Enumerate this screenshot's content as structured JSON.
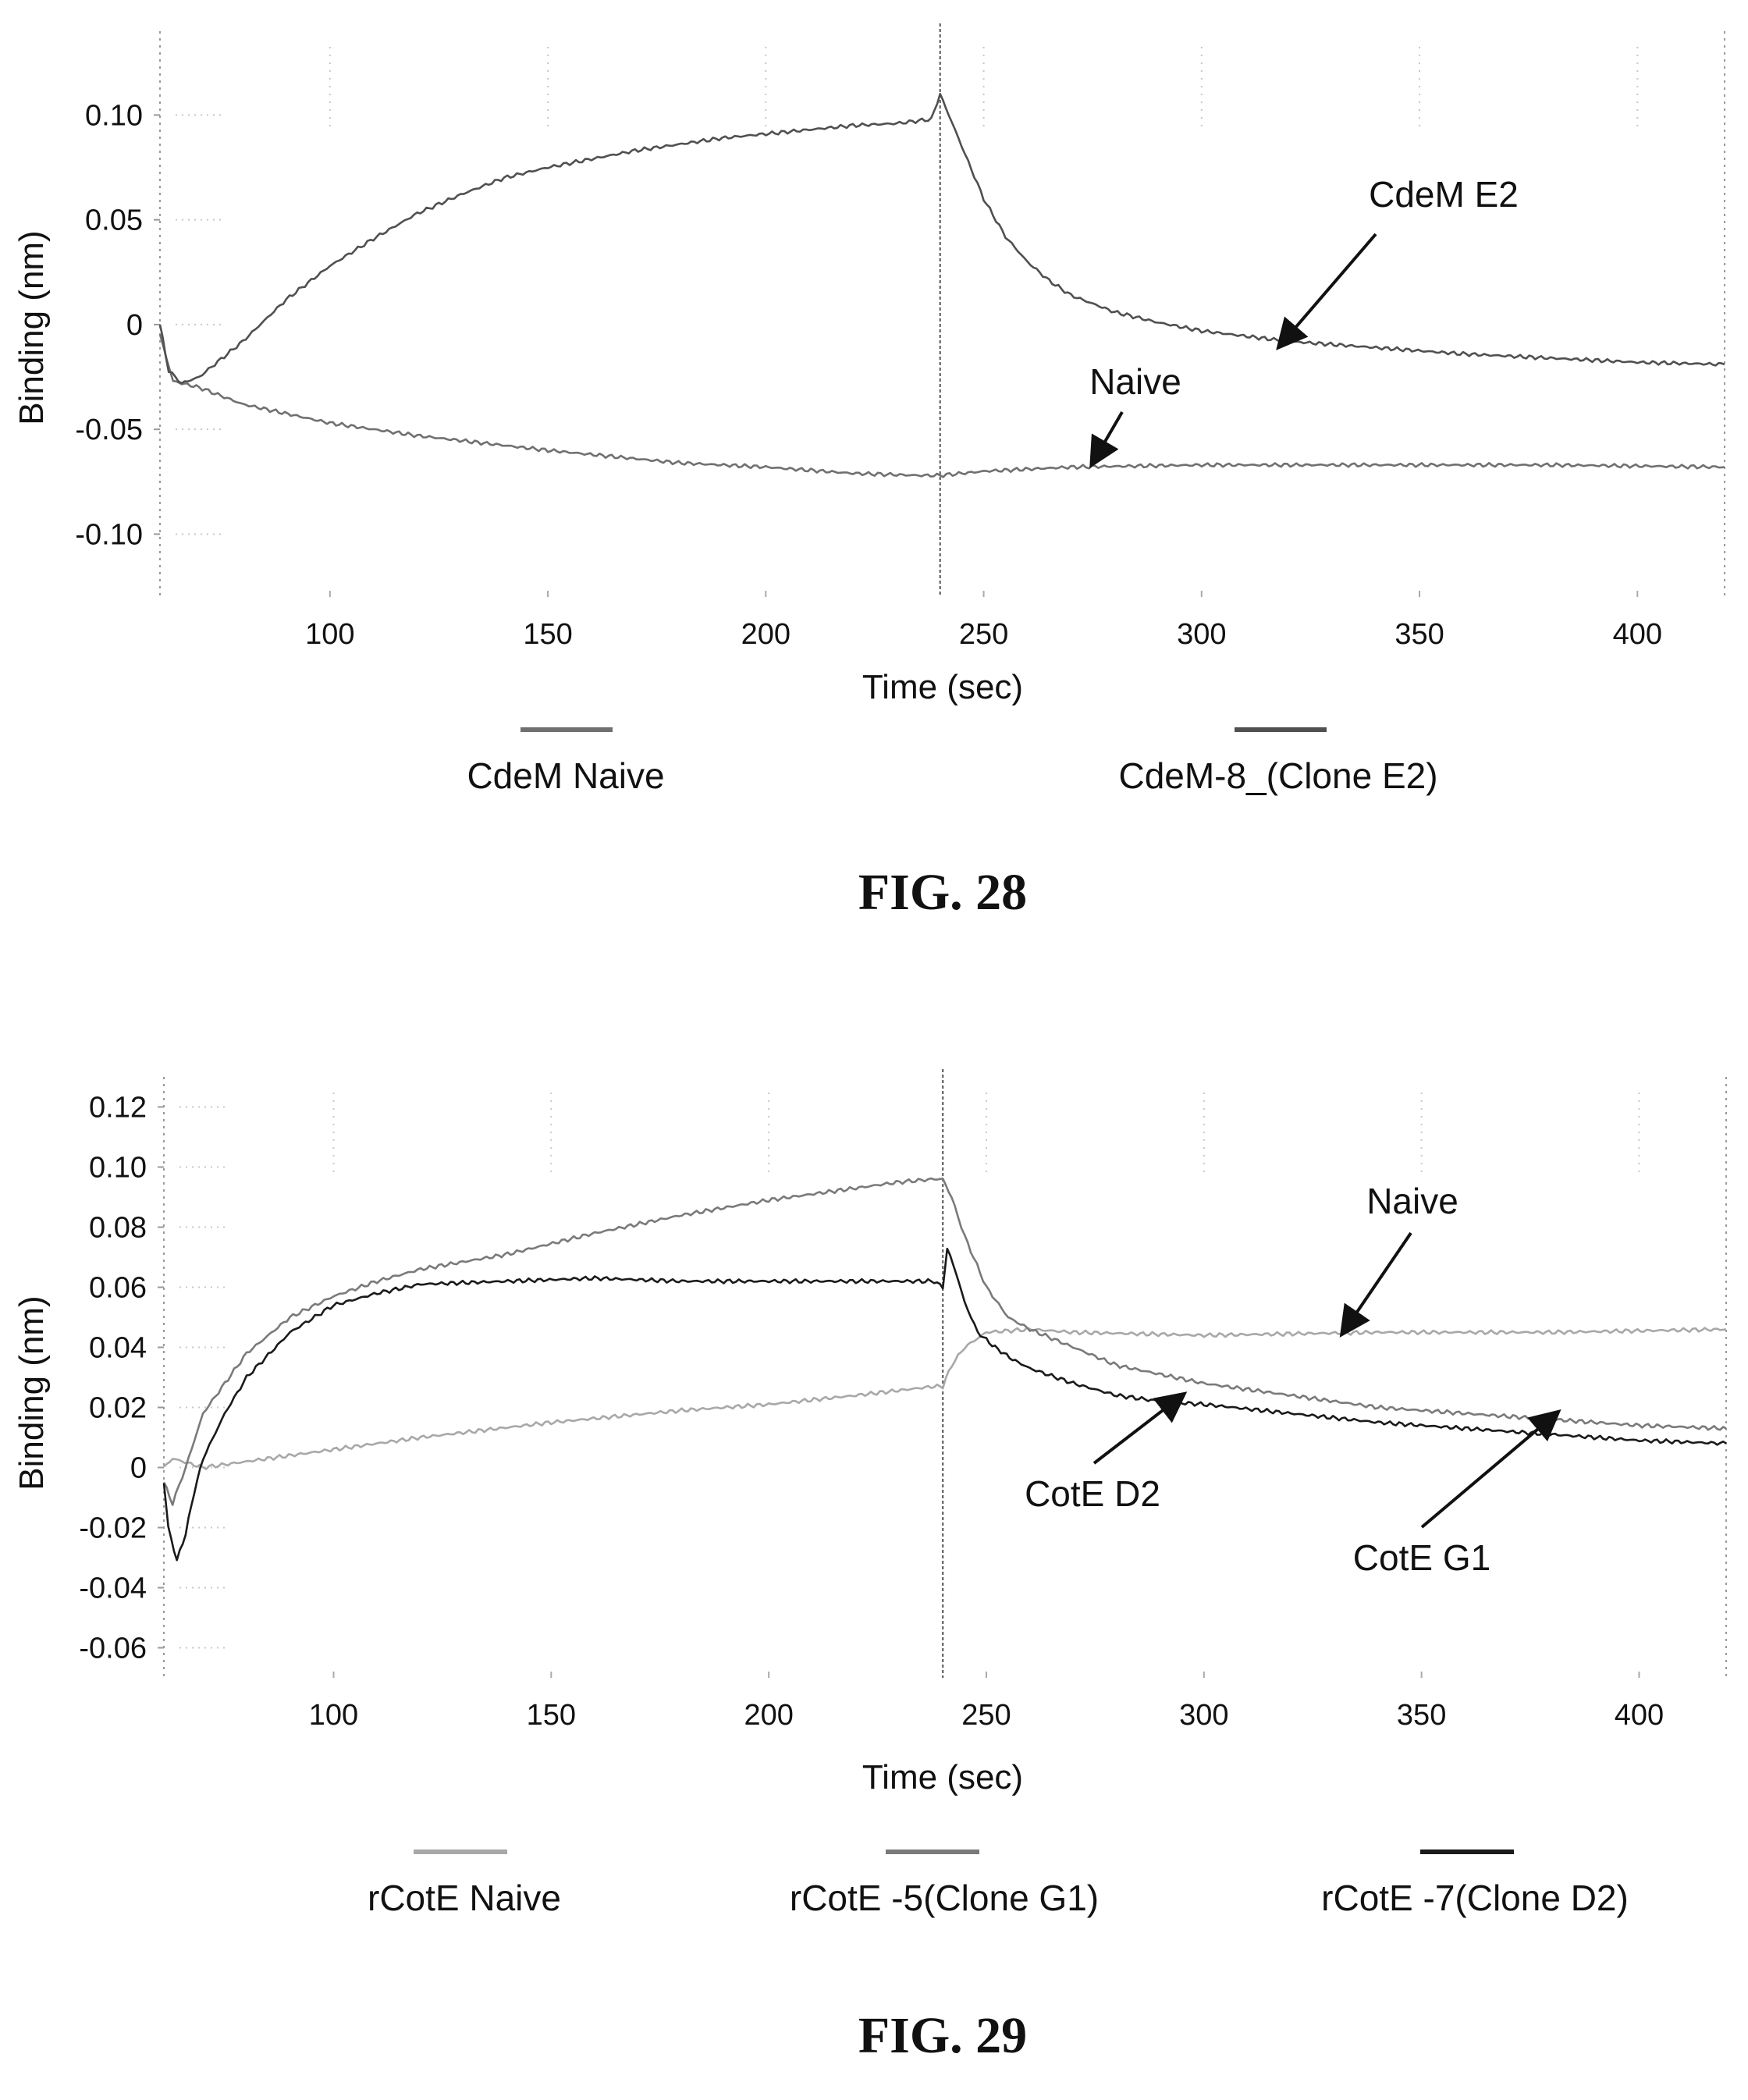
{
  "chart_data": [
    {
      "type": "line",
      "figure_label": "FIG. 28",
      "xlabel": "Time (sec)",
      "ylabel": "Binding (nm)",
      "xlim": [
        61,
        420
      ],
      "ylim": [
        -0.13,
        0.14
      ],
      "x_ticks": [
        100,
        150,
        200,
        250,
        300,
        350,
        400
      ],
      "y_ticks": [
        {
          "value": 0.1,
          "label": "0.10"
        },
        {
          "value": 0.05,
          "label": "0.05"
        },
        {
          "value": 0,
          "label": "0"
        },
        {
          "value": -0.05,
          "label": "-0.05"
        },
        {
          "value": -0.1,
          "label": "-0.10"
        }
      ],
      "marker_x": 240,
      "grid": false,
      "legend_position": "bottom",
      "series": [
        {
          "name": "CdeM Naive",
          "color": "#707070",
          "x": [
            61,
            64,
            70,
            80,
            100,
            120,
            150,
            180,
            200,
            220,
            235,
            240,
            250,
            270,
            300,
            340,
            380,
            420
          ],
          "y": [
            -0.005,
            -0.027,
            -0.03,
            -0.038,
            -0.047,
            -0.053,
            -0.06,
            -0.066,
            -0.068,
            -0.071,
            -0.072,
            -0.072,
            -0.07,
            -0.068,
            -0.067,
            -0.067,
            -0.067,
            -0.068
          ]
        },
        {
          "name": "CdeM-8_(Clone E2)",
          "color": "#505050",
          "x": [
            61,
            63,
            66,
            70,
            80,
            90,
            100,
            110,
            120,
            130,
            140,
            150,
            160,
            170,
            180,
            190,
            200,
            210,
            220,
            230,
            238,
            240,
            242,
            245,
            250,
            255,
            260,
            265,
            270,
            280,
            290,
            300,
            320,
            340,
            360,
            380,
            400,
            420
          ],
          "y": [
            0.0,
            -0.022,
            -0.028,
            -0.025,
            -0.008,
            0.012,
            0.028,
            0.041,
            0.053,
            0.062,
            0.07,
            0.075,
            0.079,
            0.083,
            0.086,
            0.089,
            0.091,
            0.093,
            0.095,
            0.096,
            0.098,
            0.11,
            0.1,
            0.085,
            0.06,
            0.042,
            0.03,
            0.021,
            0.014,
            0.006,
            0.001,
            -0.003,
            -0.008,
            -0.011,
            -0.014,
            -0.016,
            -0.018,
            -0.019
          ]
        }
      ],
      "annotations": [
        {
          "text": "CdeM E2",
          "target": [
            318,
            -0.01
          ]
        },
        {
          "text": "Naive",
          "target": [
            275,
            -0.066
          ]
        }
      ]
    },
    {
      "type": "line",
      "figure_label": "FIG. 29",
      "xlabel": "Time (sec)",
      "ylabel": "Binding (nm)",
      "xlim": [
        61,
        420
      ],
      "ylim": [
        -0.07,
        0.13
      ],
      "x_ticks": [
        100,
        150,
        200,
        250,
        300,
        350,
        400
      ],
      "y_ticks": [
        {
          "value": 0.12,
          "label": "0.12"
        },
        {
          "value": 0.1,
          "label": "0.10"
        },
        {
          "value": 0.08,
          "label": "0.08"
        },
        {
          "value": 0.06,
          "label": "0.06"
        },
        {
          "value": 0.04,
          "label": "0.04"
        },
        {
          "value": 0.02,
          "label": "0.02"
        },
        {
          "value": 0,
          "label": "0"
        },
        {
          "value": -0.02,
          "label": "-0.02"
        },
        {
          "value": -0.04,
          "label": "-0.04"
        },
        {
          "value": -0.06,
          "label": "-0.06"
        }
      ],
      "marker_x": 240,
      "grid": false,
      "legend_position": "bottom",
      "series": [
        {
          "name": "rCotE Naive",
          "color": "#a8a8a8",
          "x": [
            61,
            63,
            70,
            80,
            100,
            120,
            150,
            180,
            200,
            220,
            238,
            240,
            242,
            245,
            250,
            260,
            270,
            300,
            340,
            380,
            420
          ],
          "y": [
            0.0,
            0.003,
            0.0,
            0.002,
            0.006,
            0.01,
            0.015,
            0.019,
            0.021,
            0.024,
            0.027,
            0.027,
            0.034,
            0.04,
            0.045,
            0.046,
            0.045,
            0.044,
            0.045,
            0.045,
            0.046
          ]
        },
        {
          "name": "rCotE -5(Clone G1)",
          "color": "#7a7a7a",
          "x": [
            61,
            63,
            66,
            70,
            80,
            90,
            100,
            110,
            120,
            140,
            160,
            180,
            200,
            220,
            230,
            238,
            240,
            242,
            245,
            250,
            255,
            260,
            270,
            280,
            300,
            320,
            340,
            360,
            380,
            400,
            420
          ],
          "y": [
            -0.005,
            -0.012,
            0.0,
            0.018,
            0.038,
            0.05,
            0.057,
            0.062,
            0.066,
            0.071,
            0.078,
            0.084,
            0.089,
            0.093,
            0.095,
            0.096,
            0.096,
            0.09,
            0.077,
            0.06,
            0.05,
            0.046,
            0.04,
            0.034,
            0.028,
            0.024,
            0.02,
            0.018,
            0.016,
            0.014,
            0.013
          ]
        },
        {
          "name": "rCotE -7(Clone D2)",
          "color": "#1a1a1a",
          "x": [
            61,
            62,
            64,
            66,
            68,
            70,
            75,
            80,
            90,
            100,
            110,
            120,
            140,
            160,
            180,
            200,
            220,
            238,
            240,
            241,
            243,
            245,
            248,
            252,
            256,
            260,
            270,
            280,
            290,
            300,
            320,
            340,
            360,
            380,
            400,
            420
          ],
          "y": [
            -0.005,
            -0.02,
            -0.031,
            -0.022,
            -0.008,
            0.003,
            0.018,
            0.03,
            0.045,
            0.054,
            0.058,
            0.061,
            0.062,
            0.063,
            0.062,
            0.062,
            0.062,
            0.062,
            0.06,
            0.073,
            0.065,
            0.055,
            0.045,
            0.04,
            0.036,
            0.033,
            0.028,
            0.024,
            0.022,
            0.021,
            0.018,
            0.015,
            0.013,
            0.011,
            0.009,
            0.008
          ]
        }
      ],
      "annotations": [
        {
          "text": "Naive",
          "target": [
            332,
            0.045
          ]
        },
        {
          "text": "CotE D2",
          "target": [
            295,
            0.024
          ]
        },
        {
          "text": "CotE G1",
          "target": [
            381,
            0.018
          ]
        }
      ]
    }
  ]
}
